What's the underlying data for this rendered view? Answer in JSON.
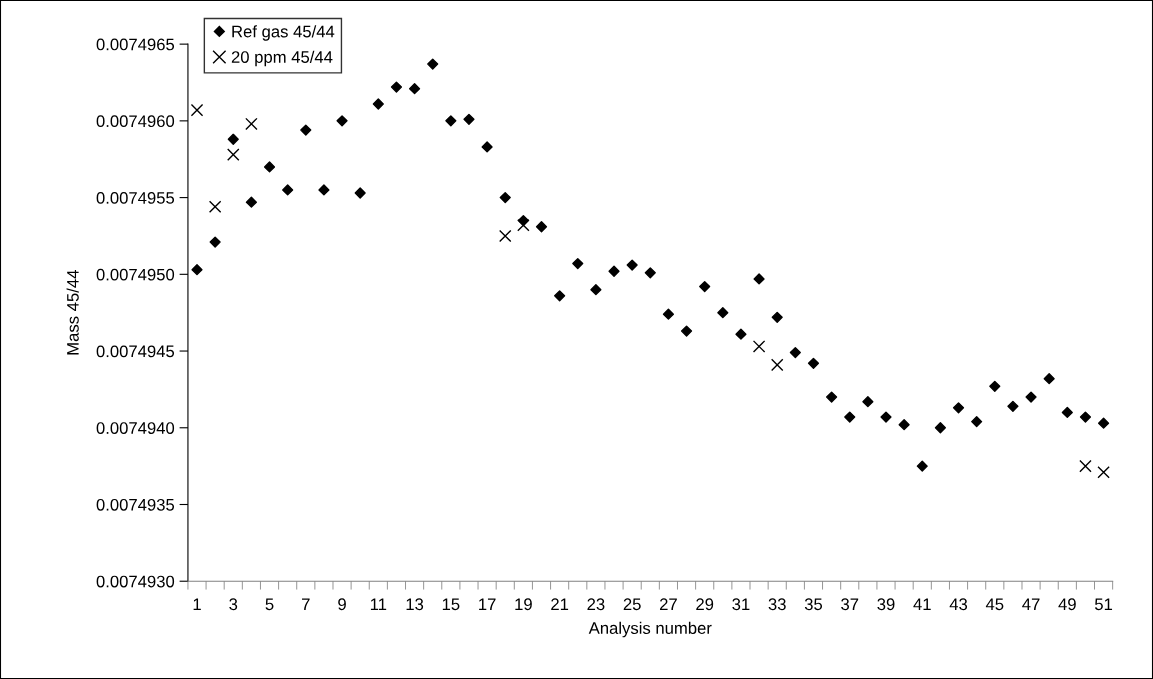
{
  "chart_data": {
    "type": "scatter",
    "xlabel": "Analysis number",
    "ylabel": "Mass 45/44",
    "categories": [
      "1",
      null,
      "3",
      null,
      "5",
      null,
      "7",
      null,
      "9",
      null,
      "11",
      null,
      "13",
      null,
      "15",
      null,
      "17",
      null,
      "19",
      null,
      "21",
      null,
      "23",
      null,
      "25",
      null,
      "27",
      null,
      "29",
      null,
      "31",
      null,
      "33",
      null,
      "35",
      null,
      "37",
      null,
      "39",
      null,
      "41",
      null,
      "43",
      null,
      "45",
      null,
      "47",
      null,
      "49",
      null,
      "51"
    ],
    "series": [
      {
        "name": "Ref gas 45/44",
        "color": "#000000",
        "marker": "diamond",
        "values": [
          0.00749503,
          0.00749521,
          0.00749588,
          0.00749547,
          0.0074957,
          0.00749555,
          0.00749594,
          0.00749555,
          0.007496,
          0.00749553,
          0.00749611,
          0.00749622,
          0.00749621,
          0.00749637,
          0.007496,
          0.00749601,
          0.00749583,
          0.0074955,
          0.00749535,
          0.00749531,
          0.00749486,
          0.00749507,
          0.0074949,
          0.00749502,
          0.00749506,
          0.00749501,
          0.00749474,
          0.00749463,
          0.00749492,
          0.00749475,
          0.00749461,
          0.00749497,
          0.00749472,
          0.00749449,
          0.00749442,
          0.0074942,
          0.00749407,
          0.00749417,
          0.00749407,
          0.00749402,
          0.00749375,
          0.007494,
          0.00749413,
          0.00749404,
          0.00749427,
          0.00749414,
          0.0074942,
          0.00749432,
          0.0074941,
          0.00749407,
          0.00749403
        ]
      },
      {
        "name": "20 ppm 45/44",
        "color": "#000000",
        "marker": "cross",
        "values": [
          0.00749607,
          0.00749544,
          0.00749578,
          0.00749598,
          null,
          null,
          null,
          null,
          null,
          null,
          null,
          null,
          null,
          null,
          null,
          null,
          null,
          0.00749525,
          0.00749532,
          null,
          null,
          null,
          null,
          null,
          null,
          null,
          null,
          null,
          null,
          null,
          null,
          0.00749453,
          0.00749441,
          null,
          null,
          null,
          null,
          null,
          null,
          null,
          null,
          null,
          null,
          null,
          null,
          null,
          null,
          null,
          null,
          0.00749375,
          0.00749371
        ]
      }
    ],
    "ylim": [
      0.007493,
      0.0074965
    ],
    "yticks": [
      {
        "value": 0.007493,
        "label": "0.0074930"
      },
      0.0074935,
      {
        "value": 0.007494,
        "label": "0.0074940"
      },
      0.0074945,
      {
        "value": 0.007495,
        "label": "0.0074950"
      },
      0.0074955,
      {
        "value": 0.007496,
        "label": "0.0074960"
      },
      0.0074965
    ],
    "grid": false,
    "legend": "top left"
  }
}
